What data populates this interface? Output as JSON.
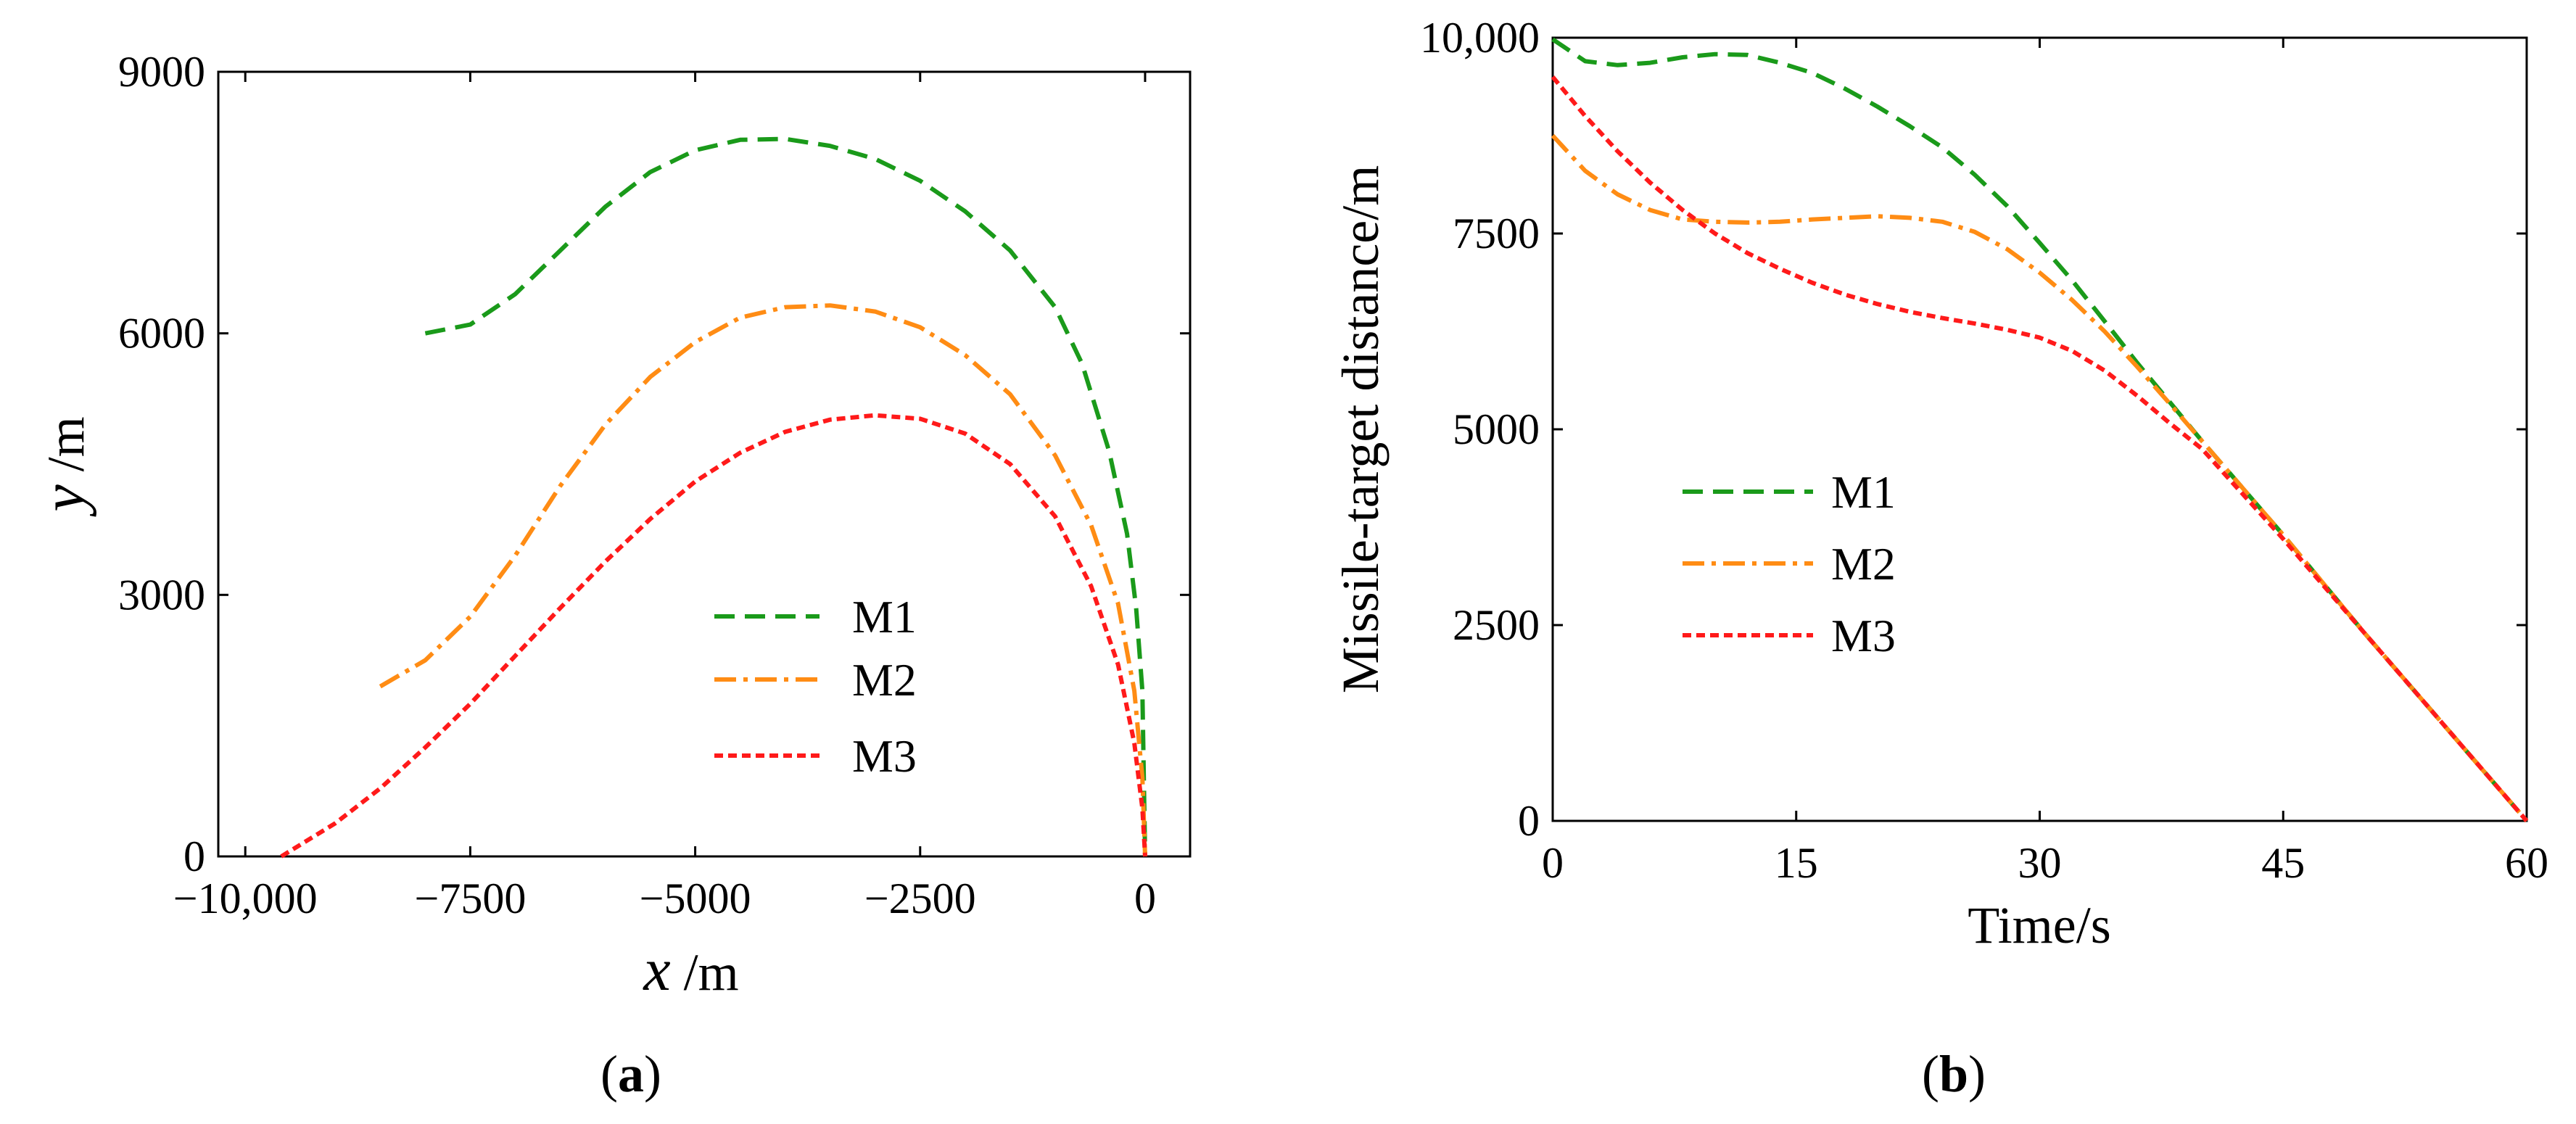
{
  "figure_labels": [
    "a",
    "b"
  ],
  "chart_data": [
    {
      "type": "line",
      "panel": "a",
      "xlabel_var": "x",
      "xlabel_unit": " /m",
      "ylabel_var": "y",
      "ylabel_unit": " /m",
      "xlim": [
        -10300,
        500
      ],
      "ylim": [
        0,
        9000
      ],
      "xticks": [
        -10000,
        -7500,
        -5000,
        -2500,
        0
      ],
      "xtick_labels": [
        "−10,000",
        "−7500",
        "−5000",
        "−2500",
        "0"
      ],
      "yticks": [
        0,
        3000,
        6000,
        9000
      ],
      "ytick_labels": [
        "0",
        "3000",
        "6000",
        "9000"
      ],
      "legend_position": "lower-right",
      "series": [
        {
          "name": "M1",
          "color": "#1a9a1a",
          "dash": "dashed",
          "x": [
            -8000,
            -7500,
            -7000,
            -6500,
            -6000,
            -5500,
            -5000,
            -4500,
            -4000,
            -3500,
            -3000,
            -2500,
            -2000,
            -1500,
            -1000,
            -700,
            -400,
            -200,
            -100,
            -30,
            0
          ],
          "y": [
            6000,
            6100,
            6450,
            6950,
            7450,
            7850,
            8100,
            8220,
            8230,
            8150,
            8000,
            7750,
            7400,
            6950,
            6300,
            5650,
            4650,
            3700,
            2850,
            1900,
            0
          ]
        },
        {
          "name": "M2",
          "color": "#ff8c14",
          "dash": "dashdot",
          "x": [
            -8500,
            -8000,
            -7500,
            -7000,
            -6500,
            -6000,
            -5500,
            -5000,
            -4500,
            -4000,
            -3500,
            -3000,
            -2500,
            -2000,
            -1500,
            -1000,
            -600,
            -300,
            -120,
            -30,
            0
          ],
          "y": [
            1950,
            2250,
            2750,
            3450,
            4250,
            4950,
            5500,
            5900,
            6180,
            6300,
            6320,
            6250,
            6070,
            5750,
            5300,
            4600,
            3800,
            2900,
            1900,
            900,
            0
          ]
        },
        {
          "name": "M3",
          "color": "#ff1a1a",
          "dash": "dotted",
          "x": [
            -9600,
            -9000,
            -8500,
            -8000,
            -7500,
            -7000,
            -6500,
            -6000,
            -5500,
            -5000,
            -4500,
            -4000,
            -3500,
            -3000,
            -2500,
            -2000,
            -1500,
            -1000,
            -600,
            -300,
            -120,
            -30,
            0
          ],
          "y": [
            0,
            380,
            780,
            1250,
            1750,
            2300,
            2850,
            3380,
            3870,
            4300,
            4630,
            4870,
            5010,
            5060,
            5020,
            4850,
            4500,
            3900,
            3100,
            2200,
            1300,
            550,
            0
          ]
        }
      ]
    },
    {
      "type": "line",
      "panel": "b",
      "xlabel": "Time/s",
      "ylabel": "Missile-target distance/m",
      "xlim": [
        0,
        60
      ],
      "ylim": [
        0,
        10000
      ],
      "xticks": [
        0,
        15,
        30,
        45,
        60
      ],
      "xtick_labels": [
        "0",
        "15",
        "30",
        "45",
        "60"
      ],
      "yticks": [
        0,
        2500,
        5000,
        7500,
        10000
      ],
      "ytick_labels": [
        "0",
        "2500",
        "5000",
        "7500",
        "10,000"
      ],
      "legend_position": "middle-left",
      "series": [
        {
          "name": "M1",
          "color": "#1a9a1a",
          "dash": "dashed",
          "x": [
            0,
            2,
            4,
            6,
            8,
            10,
            12,
            14,
            16,
            18,
            20,
            22,
            24,
            26,
            28,
            30,
            32,
            34,
            36,
            38,
            40,
            45,
            50,
            55,
            60
          ],
          "y": [
            9980,
            9700,
            9650,
            9680,
            9750,
            9790,
            9780,
            9680,
            9550,
            9350,
            9120,
            8870,
            8600,
            8250,
            7850,
            7380,
            6900,
            6380,
            5850,
            5350,
            4850,
            3650,
            2400,
            1200,
            0
          ]
        },
        {
          "name": "M2",
          "color": "#ff8c14",
          "dash": "dashdot",
          "x": [
            0,
            2,
            4,
            6,
            8,
            10,
            12,
            14,
            16,
            18,
            20,
            22,
            24,
            26,
            28,
            30,
            32,
            34,
            36,
            38,
            40,
            45,
            50,
            55,
            60
          ],
          "y": [
            8750,
            8300,
            8000,
            7800,
            7680,
            7650,
            7640,
            7650,
            7680,
            7700,
            7720,
            7700,
            7650,
            7520,
            7300,
            7000,
            6650,
            6250,
            5800,
            5330,
            4850,
            3650,
            2400,
            1200,
            0
          ]
        },
        {
          "name": "M3",
          "color": "#ff1a1a",
          "dash": "dotted",
          "x": [
            0,
            2,
            4,
            6,
            8,
            10,
            12,
            14,
            16,
            18,
            20,
            22,
            24,
            26,
            28,
            30,
            32,
            34,
            36,
            38,
            40,
            45,
            50,
            55,
            60
          ],
          "y": [
            9500,
            9000,
            8550,
            8150,
            7800,
            7500,
            7250,
            7050,
            6870,
            6720,
            6600,
            6500,
            6420,
            6350,
            6270,
            6170,
            6000,
            5750,
            5430,
            5080,
            4750,
            3600,
            2400,
            1200,
            0
          ]
        }
      ]
    }
  ]
}
